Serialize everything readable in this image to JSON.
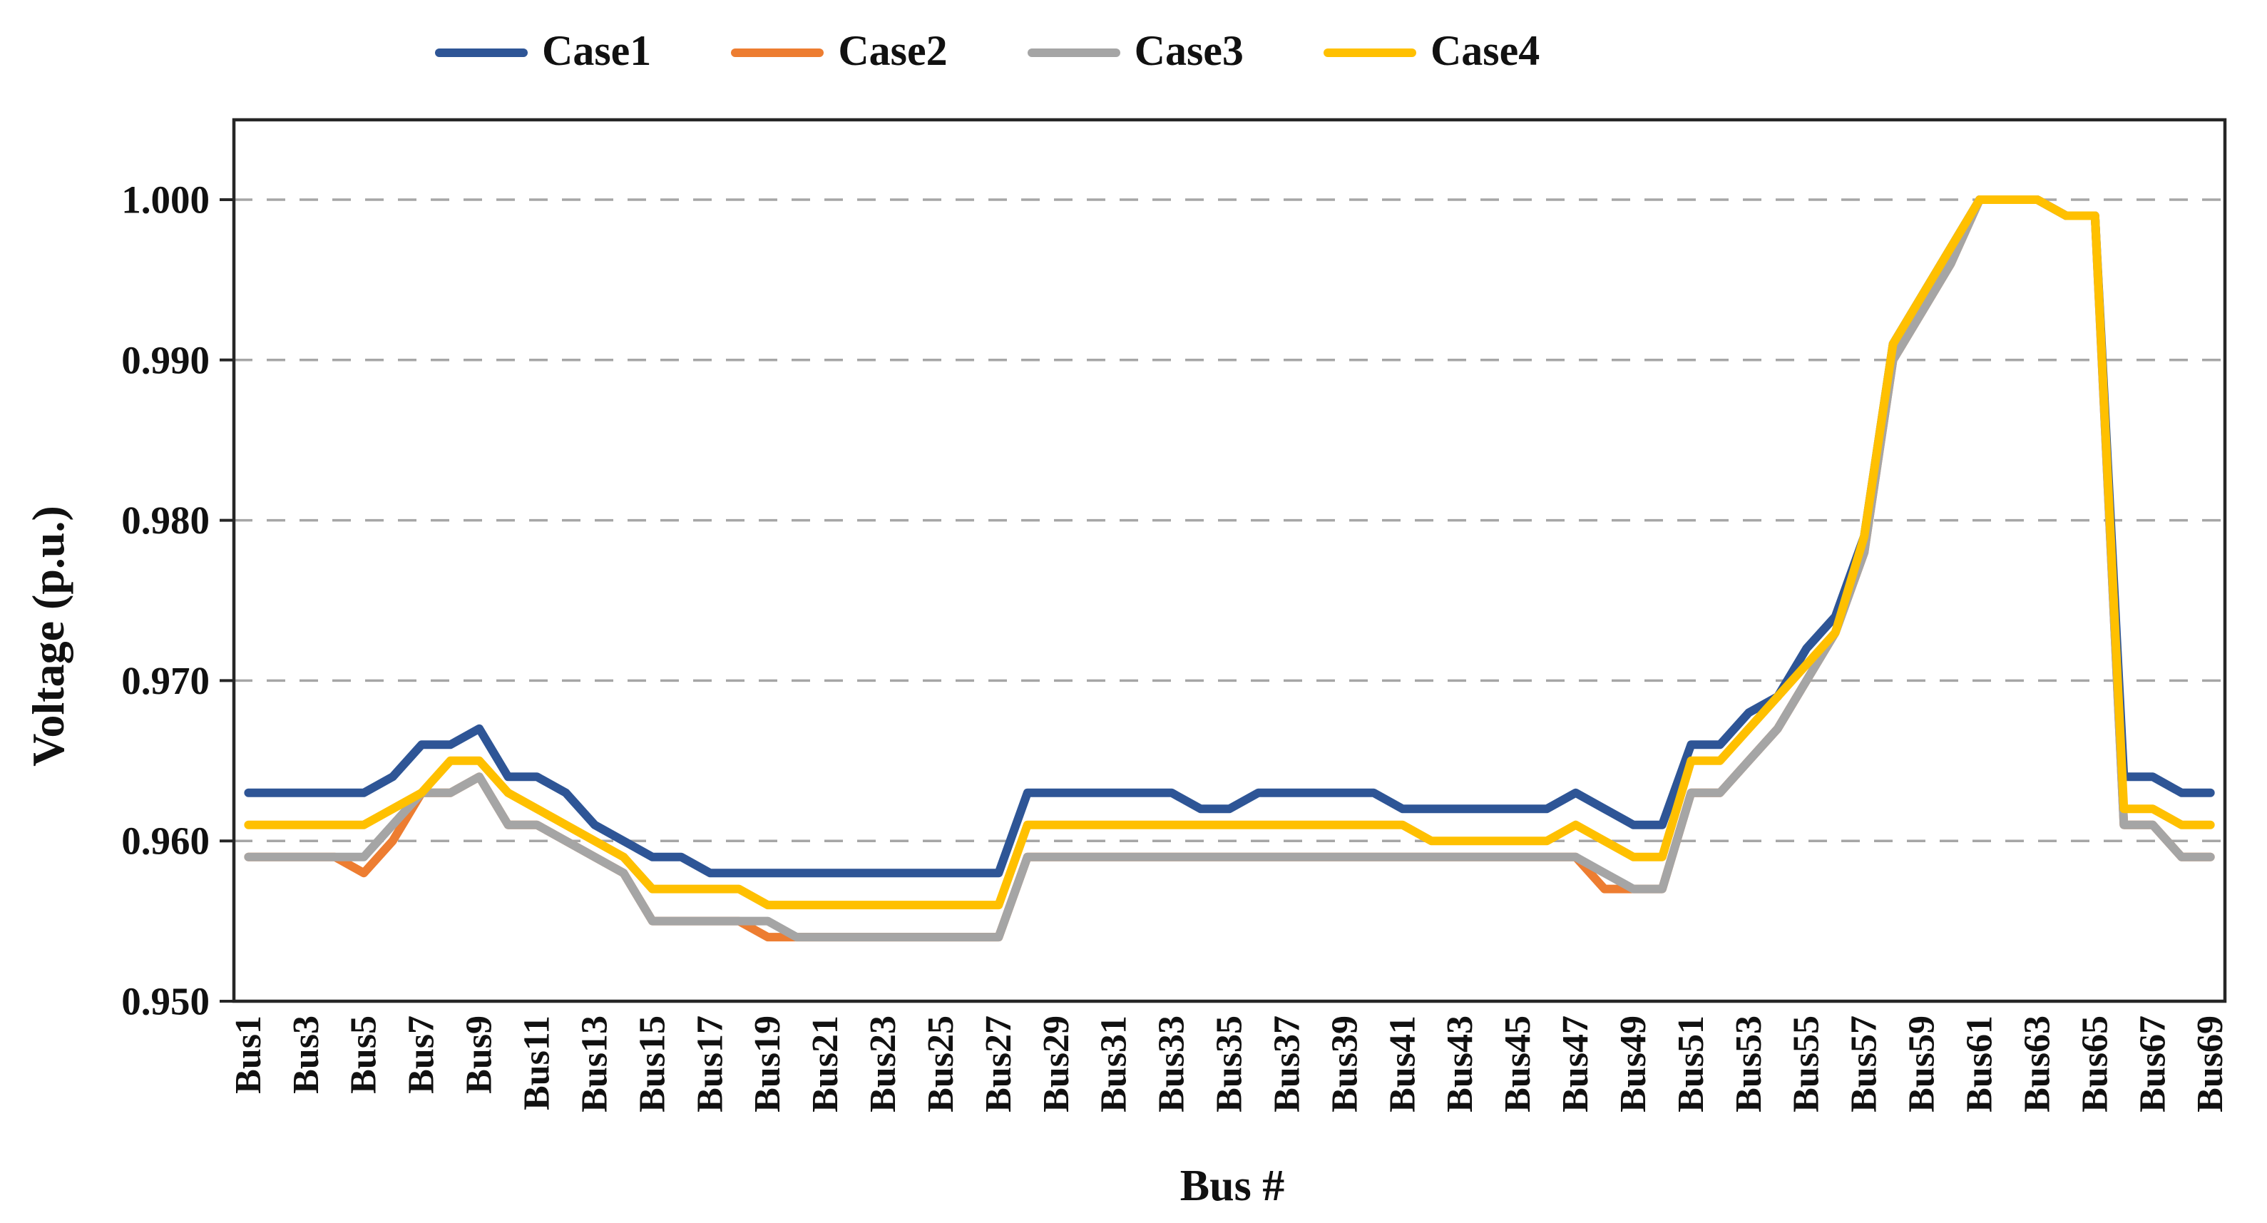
{
  "chart_data": {
    "type": "line",
    "title": "",
    "xlabel": "Bus #",
    "ylabel": "Voltage (p.u.)",
    "n_points": 69,
    "x_unit": "bus index 1..69",
    "ylim": [
      0.95,
      1.0
    ],
    "ytick_step": 0.01,
    "yticks": [
      "1.000",
      "0.990",
      "0.980",
      "0.970",
      "0.960",
      "0.950"
    ],
    "xtick_labels": [
      "Bus1",
      "Bus3",
      "Bus5",
      "Bus7",
      "Bus9",
      "Bus11",
      "Bus13",
      "Bus15",
      "Bus17",
      "Bus19",
      "Bus21",
      "Bus23",
      "Bus25",
      "Bus27",
      "Bus29",
      "Bus31",
      "Bus33",
      "Bus35",
      "Bus37",
      "Bus39",
      "Bus41",
      "Bus43",
      "Bus45",
      "Bus47",
      "Bus49",
      "Bus51",
      "Bus53",
      "Bus55",
      "Bus57",
      "Bus59",
      "Bus61",
      "Bus63",
      "Bus65",
      "Bus67",
      "Bus69"
    ],
    "grid": "horizontal dashed",
    "grid_color": "#A6A6A6",
    "axis_color": "#262626",
    "legend_position": "top",
    "series": [
      {
        "name": "Case1",
        "color": "#2E5596",
        "values": [
          0.963,
          0.963,
          0.963,
          0.963,
          0.963,
          0.964,
          0.966,
          0.966,
          0.967,
          0.964,
          0.964,
          0.963,
          0.961,
          0.96,
          0.959,
          0.959,
          0.958,
          0.958,
          0.958,
          0.958,
          0.958,
          0.958,
          0.958,
          0.958,
          0.958,
          0.958,
          0.958,
          0.963,
          0.963,
          0.963,
          0.963,
          0.963,
          0.963,
          0.962,
          0.962,
          0.963,
          0.963,
          0.963,
          0.963,
          0.963,
          0.962,
          0.962,
          0.962,
          0.962,
          0.962,
          0.962,
          0.963,
          0.962,
          0.961,
          0.961,
          0.966,
          0.966,
          0.968,
          0.969,
          0.972,
          0.974,
          0.979,
          0.991,
          0.994,
          0.997,
          1.0,
          1.0,
          1.0,
          0.999,
          0.999,
          0.964,
          0.964,
          0.963,
          0.963
        ]
      },
      {
        "name": "Case2",
        "color": "#ED7D31",
        "values": [
          0.959,
          0.959,
          0.959,
          0.959,
          0.958,
          0.96,
          0.963,
          0.963,
          0.964,
          0.961,
          0.961,
          0.96,
          0.959,
          0.958,
          0.955,
          0.955,
          0.955,
          0.955,
          0.954,
          0.954,
          0.954,
          0.954,
          0.954,
          0.954,
          0.954,
          0.954,
          0.954,
          0.959,
          0.959,
          0.959,
          0.959,
          0.959,
          0.959,
          0.959,
          0.959,
          0.959,
          0.959,
          0.959,
          0.959,
          0.959,
          0.959,
          0.959,
          0.959,
          0.959,
          0.959,
          0.959,
          0.959,
          0.957,
          0.957,
          0.957,
          0.963,
          0.963,
          0.965,
          0.967,
          0.97,
          0.973,
          0.978,
          0.99,
          0.993,
          0.996,
          1.0,
          1.0,
          1.0,
          0.999,
          0.999,
          0.961,
          0.961,
          0.959,
          0.959
        ]
      },
      {
        "name": "Case3",
        "color": "#A5A5A5",
        "values": [
          0.959,
          0.959,
          0.959,
          0.959,
          0.959,
          0.961,
          0.963,
          0.963,
          0.964,
          0.961,
          0.961,
          0.96,
          0.959,
          0.958,
          0.955,
          0.955,
          0.955,
          0.955,
          0.955,
          0.954,
          0.954,
          0.954,
          0.954,
          0.954,
          0.954,
          0.954,
          0.954,
          0.959,
          0.959,
          0.959,
          0.959,
          0.959,
          0.959,
          0.959,
          0.959,
          0.959,
          0.959,
          0.959,
          0.959,
          0.959,
          0.959,
          0.959,
          0.959,
          0.959,
          0.959,
          0.959,
          0.959,
          0.958,
          0.957,
          0.957,
          0.963,
          0.963,
          0.965,
          0.967,
          0.97,
          0.973,
          0.978,
          0.99,
          0.993,
          0.996,
          1.0,
          1.0,
          1.0,
          0.999,
          0.999,
          0.961,
          0.961,
          0.959,
          0.959
        ]
      },
      {
        "name": "Case4",
        "color": "#FFC000",
        "values": [
          0.961,
          0.961,
          0.961,
          0.961,
          0.961,
          0.962,
          0.963,
          0.965,
          0.965,
          0.963,
          0.962,
          0.961,
          0.96,
          0.959,
          0.957,
          0.957,
          0.957,
          0.957,
          0.956,
          0.956,
          0.956,
          0.956,
          0.956,
          0.956,
          0.956,
          0.956,
          0.956,
          0.961,
          0.961,
          0.961,
          0.961,
          0.961,
          0.961,
          0.961,
          0.961,
          0.961,
          0.961,
          0.961,
          0.961,
          0.961,
          0.961,
          0.96,
          0.96,
          0.96,
          0.96,
          0.96,
          0.961,
          0.96,
          0.959,
          0.959,
          0.965,
          0.965,
          0.967,
          0.969,
          0.971,
          0.973,
          0.979,
          0.991,
          0.994,
          0.997,
          1.0,
          1.0,
          1.0,
          0.999,
          0.999,
          0.962,
          0.962,
          0.961,
          0.961
        ]
      }
    ],
    "draw_order": [
      "Case1",
      "Case2",
      "Case3",
      "Case4"
    ]
  }
}
